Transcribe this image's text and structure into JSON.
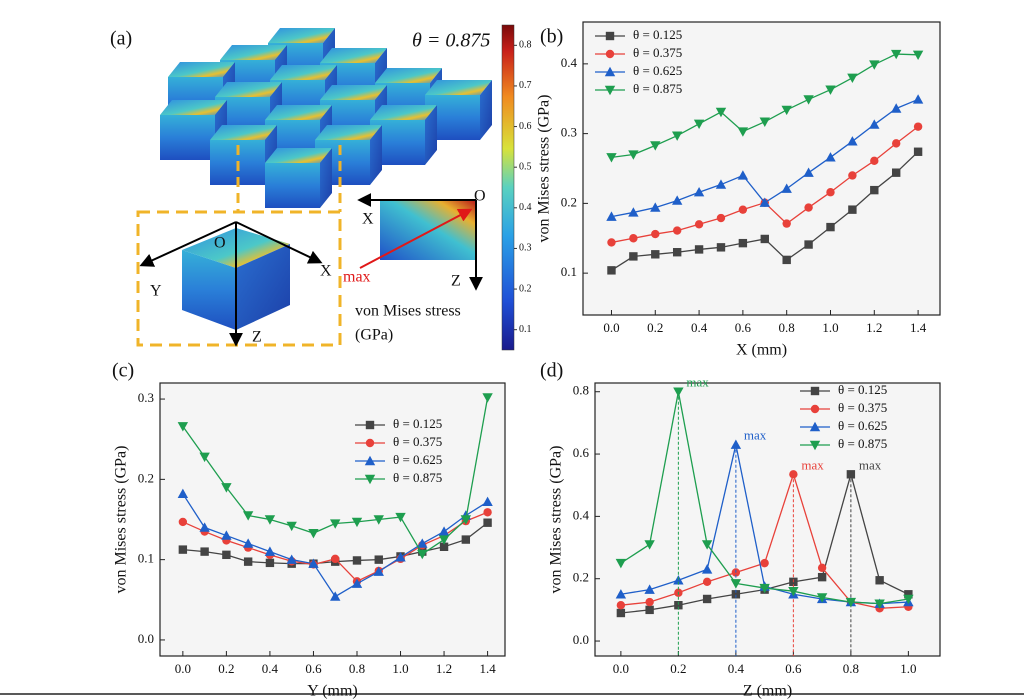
{
  "panel_a": {
    "label": "(a)",
    "theta": "θ = 0.875",
    "colorbar": {
      "lim": [
        0.05,
        0.85
      ],
      "ticks": [
        0.1,
        0.2,
        0.3,
        0.4,
        0.5,
        0.6,
        0.7,
        0.8
      ]
    },
    "colorbar_title": [
      "von Mises stress",
      "(GPa)"
    ],
    "axis_letters": [
      "O",
      "X",
      "Y",
      "Z",
      "O",
      "X",
      "Z",
      "max"
    ]
  },
  "chart_data": [
    {
      "type": "line",
      "label": "(b)",
      "x_label": "X (mm)",
      "y_label": "von Mises stress (GPa)",
      "legend": "upper left",
      "x": [
        0,
        0.1,
        0.2,
        0.3,
        0.4,
        0.5,
        0.6,
        0.7,
        0.8,
        0.9,
        1.0,
        1.1,
        1.2,
        1.3,
        1.4
      ],
      "xlim": [
        -0.13,
        1.5
      ],
      "xticks": [
        {
          "value": 0,
          "label": "0.0"
        },
        0.2,
        0.4,
        0.6,
        0.8,
        {
          "value": 1,
          "label": "1.0"
        },
        1.2,
        1.4
      ],
      "ylim": [
        0.04,
        0.46
      ],
      "yticks": [
        0.1,
        0.2,
        0.3,
        0.4
      ],
      "series": [
        {
          "name": "θ = 0.125",
          "color": "#444444",
          "marker": "square",
          "values": [
            0.104,
            0.124,
            0.127,
            0.13,
            0.134,
            0.137,
            0.143,
            0.149,
            0.119,
            0.141,
            0.166,
            0.191,
            0.219,
            0.244,
            0.274
          ]
        },
        {
          "name": "θ = 0.375",
          "color": "#e8413a",
          "marker": "circle",
          "values": [
            0.144,
            0.15,
            0.156,
            0.161,
            0.17,
            0.179,
            0.191,
            0.201,
            0.171,
            0.194,
            0.216,
            0.24,
            0.261,
            0.286,
            0.31
          ]
        },
        {
          "name": "θ = 0.625",
          "color": "#1f5fc9",
          "marker": "triangle-up",
          "values": [
            0.181,
            0.187,
            0.194,
            0.204,
            0.216,
            0.227,
            0.24,
            0.201,
            0.221,
            0.244,
            0.266,
            0.289,
            0.313,
            0.336,
            0.349
          ]
        },
        {
          "name": "θ = 0.875",
          "color": "#1e9e4f",
          "marker": "triangle-down",
          "values": [
            0.266,
            0.27,
            0.283,
            0.297,
            0.314,
            0.331,
            0.303,
            0.317,
            0.334,
            0.349,
            0.363,
            0.38,
            0.399,
            0.414,
            0.413
          ]
        }
      ]
    },
    {
      "type": "line",
      "label": "(c)",
      "x_label": "Y (mm)",
      "y_label": "von Mises stress (GPa)",
      "legend": "center right",
      "x": [
        0,
        0.1,
        0.2,
        0.3,
        0.4,
        0.5,
        0.6,
        0.7,
        0.8,
        0.9,
        1.0,
        1.1,
        1.2,
        1.3,
        1.4
      ],
      "xlim": [
        -0.105,
        1.48
      ],
      "xticks": [
        {
          "value": 0,
          "label": "0.0"
        },
        0.2,
        0.4,
        0.6,
        0.8,
        {
          "value": 1,
          "label": "1.0"
        },
        1.2,
        1.4
      ],
      "ylim": [
        -0.02,
        0.32
      ],
      "yticks": [
        {
          "value": 0,
          "label": "0.0"
        },
        0.1,
        0.2,
        0.3
      ],
      "series": [
        {
          "name": "θ = 0.125",
          "color": "#444444",
          "marker": "square",
          "values": [
            0.1125,
            0.11,
            0.106,
            0.0975,
            0.096,
            0.095,
            0.095,
            0.0975,
            0.099,
            0.1,
            0.104,
            0.11,
            0.116,
            0.125,
            0.146
          ]
        },
        {
          "name": "θ = 0.375",
          "color": "#e8413a",
          "marker": "circle",
          "values": [
            0.147,
            0.135,
            0.124,
            0.115,
            0.106,
            0.098,
            0.094,
            0.101,
            0.073,
            0.086,
            0.101,
            0.118,
            0.13,
            0.148,
            0.159
          ]
        },
        {
          "name": "θ = 0.625",
          "color": "#1f5fc9",
          "marker": "triangle-up",
          "values": [
            0.182,
            0.14,
            0.13,
            0.12,
            0.11,
            0.1,
            0.095,
            0.054,
            0.07,
            0.085,
            0.103,
            0.12,
            0.135,
            0.155,
            0.172
          ]
        },
        {
          "name": "θ = 0.875",
          "color": "#1e9e4f",
          "marker": "triangle-down",
          "values": [
            0.266,
            0.228,
            0.19,
            0.155,
            0.15,
            0.142,
            0.133,
            0.145,
            0.147,
            0.15,
            0.153,
            0.107,
            0.125,
            0.15,
            0.302
          ]
        }
      ]
    },
    {
      "type": "line",
      "label": "(d)",
      "x_label": "Z (mm)",
      "y_label": "von Mises stress (GPa)",
      "legend": "upper right",
      "x": [
        0,
        0.1,
        0.2,
        0.3,
        0.4,
        0.5,
        0.6,
        0.7,
        0.8,
        0.9,
        1.0
      ],
      "xlim": [
        -0.09,
        1.11
      ],
      "xticks": [
        {
          "value": 0,
          "label": "0.0"
        },
        0.2,
        0.4,
        0.6,
        0.8,
        {
          "value": 1,
          "label": "1.0"
        }
      ],
      "ylim": [
        -0.048,
        0.828
      ],
      "yticks": [
        {
          "value": 0,
          "label": "0.0"
        },
        0.2,
        0.4,
        0.6,
        0.8
      ],
      "annotations": [
        "max",
        "max",
        "max",
        "max"
      ],
      "series": [
        {
          "name": "θ = 0.125",
          "color": "#444444",
          "marker": "square",
          "values": [
            0.09,
            0.1,
            0.115,
            0.135,
            0.15,
            0.165,
            0.19,
            0.205,
            0.535,
            0.195,
            0.15
          ]
        },
        {
          "name": "θ = 0.375",
          "color": "#e8413a",
          "marker": "circle",
          "values": [
            0.115,
            0.125,
            0.155,
            0.19,
            0.22,
            0.25,
            0.535,
            0.235,
            0.125,
            0.105,
            0.11
          ]
        },
        {
          "name": "θ = 0.625",
          "color": "#1f5fc9",
          "marker": "triangle-up",
          "values": [
            0.15,
            0.165,
            0.195,
            0.23,
            0.63,
            0.175,
            0.15,
            0.135,
            0.125,
            0.12,
            0.125
          ]
        },
        {
          "name": "θ = 0.875",
          "color": "#1e9e4f",
          "marker": "triangle-down",
          "values": [
            0.25,
            0.31,
            0.8,
            0.31,
            0.185,
            0.17,
            0.16,
            0.14,
            0.125,
            0.12,
            0.135
          ]
        }
      ]
    }
  ]
}
